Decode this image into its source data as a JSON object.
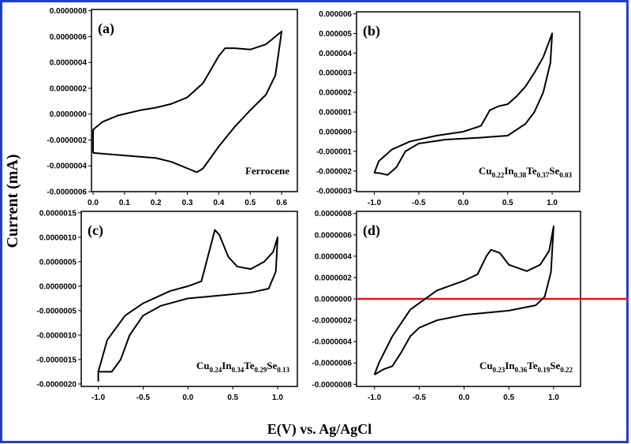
{
  "y_label": "Current (mA)",
  "x_label": "E(V) vs. Ag/AgCl",
  "chart_data": [
    {
      "type": "line",
      "panel_label": "(a)",
      "annotation": [
        "Ferrocene"
      ],
      "color": "#000000",
      "x": [
        0,
        0,
        0.03,
        0.08,
        0.15,
        0.2,
        0.25,
        0.3,
        0.35,
        0.4,
        0.42,
        0.45,
        0.5,
        0.55,
        0.6,
        0.58,
        0.55,
        0.5,
        0.45,
        0.4,
        0.35,
        0.33,
        0.3,
        0.25,
        0.2,
        0.1,
        0
      ],
      "values": [
        -3e-07,
        -1.2e-07,
        -6e-08,
        -1e-08,
        3e-08,
        5e-08,
        8e-08,
        1.3e-07,
        2.4e-07,
        4.5e-07,
        5.1e-07,
        5.1e-07,
        5e-07,
        5.4e-07,
        6.4e-07,
        3e-07,
        1.5e-07,
        3e-08,
        -1e-07,
        -2.5e-07,
        -4.2e-07,
        -4.5e-07,
        -4.2e-07,
        -3.7e-07,
        -3.4e-07,
        -3.2e-07,
        -3e-07
      ],
      "xlim": [
        -0.005,
        0.65
      ],
      "ylim": [
        -6e-07,
        8.1e-07
      ],
      "xticks": [
        {
          "value": 0,
          "label": "0.0"
        },
        0.1,
        0.2,
        0.3,
        0.4,
        0.5,
        0.6
      ],
      "yticks": [
        {
          "value": 8e-07,
          "label": "0.0000008"
        },
        {
          "value": 6e-07,
          "label": "0.0000006"
        },
        {
          "value": 4e-07,
          "label": "0.0000004"
        },
        {
          "value": 2e-07,
          "label": "0.0000002"
        },
        {
          "value": 0,
          "label": "0.0000000"
        },
        {
          "value": -2e-07,
          "label": "-0.0000002"
        },
        {
          "value": -4e-07,
          "label": "-0.0000004"
        },
        {
          "value": -6e-07,
          "label": "-0.0000006"
        }
      ]
    },
    {
      "type": "line",
      "panel_label": "(b)",
      "annotation": [
        "Cu",
        "0.22",
        "In",
        "0.38",
        "Te",
        "0.37",
        "Se",
        "0.03"
      ],
      "color": "#000000",
      "x": [
        -1.0,
        -0.95,
        -0.8,
        -0.6,
        -0.3,
        0,
        0.2,
        0.3,
        0.4,
        0.5,
        0.6,
        0.7,
        0.8,
        0.9,
        1.0,
        0.98,
        0.9,
        0.8,
        0.7,
        0.5,
        0.2,
        -0.2,
        -0.5,
        -0.65,
        -0.75,
        -0.85,
        -0.95,
        -1.0
      ],
      "values": [
        -2.1e-06,
        -1.5e-06,
        -9e-07,
        -5e-07,
        -2e-07,
        0,
        3e-07,
        1.1e-06,
        1.3e-06,
        1.4e-06,
        1.8e-06,
        2.3e-06,
        3e-06,
        3.8e-06,
        5e-06,
        3.5e-06,
        2e-06,
        1e-06,
        4e-07,
        -2e-07,
        -3e-07,
        -4e-07,
        -6e-07,
        -1e-06,
        -1.8e-06,
        -2.2e-06,
        -2.1e-06,
        -2.1e-06
      ],
      "xlim": [
        -1.2,
        1.31
      ],
      "ylim": [
        -3.05e-06,
        6.1e-06
      ],
      "xticks": [
        {
          "value": -1,
          "label": "-1.0"
        },
        -0.5,
        {
          "value": 0,
          "label": "0.0"
        },
        0.5,
        {
          "value": 1,
          "label": "1.0"
        }
      ],
      "yticks": [
        {
          "value": 6e-06,
          "label": "0.000006"
        },
        {
          "value": 5e-06,
          "label": "0.000005"
        },
        {
          "value": 4e-06,
          "label": "0.000004"
        },
        {
          "value": 3e-06,
          "label": "0.000003"
        },
        {
          "value": 2e-06,
          "label": "0.000002"
        },
        {
          "value": 1e-06,
          "label": "0.000001"
        },
        {
          "value": 0,
          "label": "0.000000"
        },
        {
          "value": -1e-06,
          "label": "-0.000001"
        },
        {
          "value": -2e-06,
          "label": "-0.000002"
        },
        {
          "value": -3e-06,
          "label": "-0.000003"
        }
      ]
    },
    {
      "type": "line",
      "panel_label": "(c)",
      "annotation": [
        "Cu",
        "0.24",
        "In",
        "0.34",
        "Te",
        "0.29",
        "Se",
        "0.13"
      ],
      "color": "#000000",
      "x": [
        -1.0,
        -1.0,
        -0.9,
        -0.7,
        -0.5,
        -0.2,
        0,
        0.15,
        0.25,
        0.3,
        0.35,
        0.45,
        0.55,
        0.7,
        0.85,
        0.95,
        1.0,
        0.98,
        0.9,
        0.7,
        0.3,
        0,
        -0.3,
        -0.5,
        -0.65,
        -0.75,
        -0.85,
        -1.0
      ],
      "values": [
        -1.95e-06,
        -1.75e-06,
        -1.1e-06,
        -6e-07,
        -3.5e-07,
        -1e-07,
        0,
        1e-07,
        8e-07,
        1.15e-06,
        1.05e-06,
        6e-07,
        4e-07,
        3.5e-07,
        5e-07,
        7e-07,
        1e-06,
        3e-07,
        -5e-08,
        -1.3e-07,
        -2e-07,
        -2.5e-07,
        -4e-07,
        -6e-07,
        -1e-06,
        -1.5e-06,
        -1.75e-06,
        -1.75e-06
      ],
      "xlim": [
        -1.19,
        1.22
      ],
      "ylim": [
        -2.05e-06,
        1.53e-06
      ],
      "xticks": [
        {
          "value": -1,
          "label": "-1.0"
        },
        -0.5,
        {
          "value": 0,
          "label": "0.0"
        },
        0.5,
        {
          "value": 1,
          "label": "1.0"
        }
      ],
      "yticks": [
        {
          "value": 1.5e-06,
          "label": "0.0000015"
        },
        {
          "value": 1e-06,
          "label": "0.0000010"
        },
        {
          "value": 5e-07,
          "label": "0.0000005"
        },
        {
          "value": 0,
          "label": "0.0000000"
        },
        {
          "value": -5e-07,
          "label": "-0.0000005"
        },
        {
          "value": -1e-06,
          "label": "-0.0000010"
        },
        {
          "value": -1.5e-06,
          "label": "-0.0000015"
        },
        {
          "value": -2e-06,
          "label": "-0.0000020"
        }
      ]
    },
    {
      "type": "line",
      "panel_label": "(d)",
      "annotation": [
        "Cu",
        "0.23",
        "In",
        "0.36",
        "Te",
        "0.19",
        "Se",
        "0.22"
      ],
      "color": "#000000",
      "hline": 0,
      "hline_color": "#e8141c",
      "x": [
        -1.0,
        -0.95,
        -0.8,
        -0.6,
        -0.3,
        0,
        0.15,
        0.25,
        0.3,
        0.4,
        0.5,
        0.7,
        0.85,
        0.95,
        1.0,
        0.97,
        0.9,
        0.8,
        0.5,
        0,
        -0.3,
        -0.5,
        -0.6,
        -0.7,
        -0.8,
        -0.9,
        -1.0
      ],
      "values": [
        -7.1e-07,
        -6e-07,
        -3.5e-07,
        -1e-07,
        8e-08,
        1.7e-07,
        2.3e-07,
        4e-07,
        4.6e-07,
        4.3e-07,
        3.2e-07,
        2.6e-07,
        3.2e-07,
        4.5e-07,
        6.8e-07,
        2.5e-07,
        2e-08,
        -6e-08,
        -1.1e-07,
        -1.5e-07,
        -2e-07,
        -2.7e-07,
        -3.5e-07,
        -5e-07,
        -6.3e-07,
        -6.6e-07,
        -7.1e-07
      ],
      "xlim": [
        -1.2,
        1.3
      ],
      "ylim": [
        -8.2e-07,
        8.2e-07
      ],
      "xticks": [
        {
          "value": -1,
          "label": "-1.0"
        },
        -0.5,
        {
          "value": 0,
          "label": "0.0"
        },
        0.5,
        {
          "value": 1,
          "label": "1.0"
        }
      ],
      "yticks": [
        {
          "value": 8e-07,
          "label": "0.0000008"
        },
        {
          "value": 6e-07,
          "label": "0.0000006"
        },
        {
          "value": 4e-07,
          "label": "0.0000004"
        },
        {
          "value": 2e-07,
          "label": "0.0000002"
        },
        {
          "value": 0,
          "label": "0.0000000"
        },
        {
          "value": -2e-07,
          "label": "-0.0000002"
        },
        {
          "value": -4e-07,
          "label": "-0.0000004"
        },
        {
          "value": -6e-07,
          "label": "-0.0000006"
        },
        {
          "value": -8e-07,
          "label": "-0.0000008"
        }
      ]
    }
  ]
}
